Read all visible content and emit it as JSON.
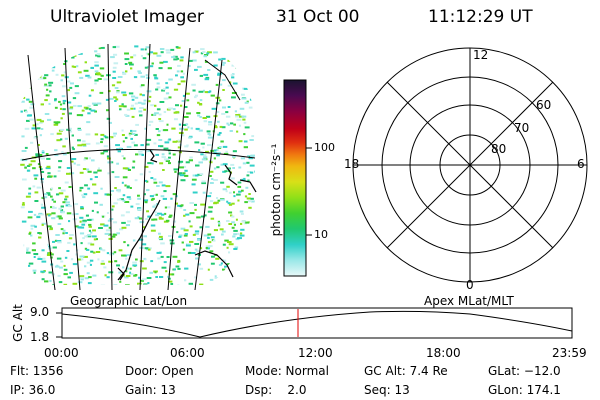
{
  "header": {
    "instrument": "Ultraviolet Imager",
    "date": "31 Oct 00",
    "time": "11:12:29 UT"
  },
  "colorbar": {
    "label": "photon cm⁻²s⁻¹",
    "tick_labels": [
      "100",
      "10"
    ],
    "colors": [
      "#1a1430",
      "#4a0a50",
      "#8a0040",
      "#c00018",
      "#e03010",
      "#f07810",
      "#f0b810",
      "#d8e018",
      "#90e018",
      "#40d030",
      "#20c870",
      "#30d0c8",
      "#9ae8e8",
      "#e8f8f8"
    ]
  },
  "geo_panel": {
    "label": "Geographic Lat/Lon"
  },
  "polar_panel": {
    "label": "Apex MLat/MLT",
    "mlt_labels": {
      "top": "12",
      "bottom": "0",
      "left": "18",
      "right": "6"
    },
    "lat_labels": [
      "60",
      "70",
      "80"
    ]
  },
  "altitude_plot": {
    "ylabel": "GC Alt",
    "y_ticks": [
      "9.0",
      "1.8"
    ],
    "x_ticks": [
      "00:00",
      "06:00",
      "12:00",
      "18:00",
      "23:59"
    ],
    "current_time_marker_color": "#e00000"
  },
  "info": {
    "flt": "Flt: 1356",
    "ip": "IP: 36.0",
    "door": "Door: Open",
    "gain": "Gain: 13",
    "mode": "Mode: Normal",
    "dsp": "Dsp:    2.0",
    "gc_alt": "GC Alt: 7.4 Re",
    "seq": "Seq: 13",
    "glat": "GLat: −12.0",
    "glon": "GLon: 174.1"
  }
}
